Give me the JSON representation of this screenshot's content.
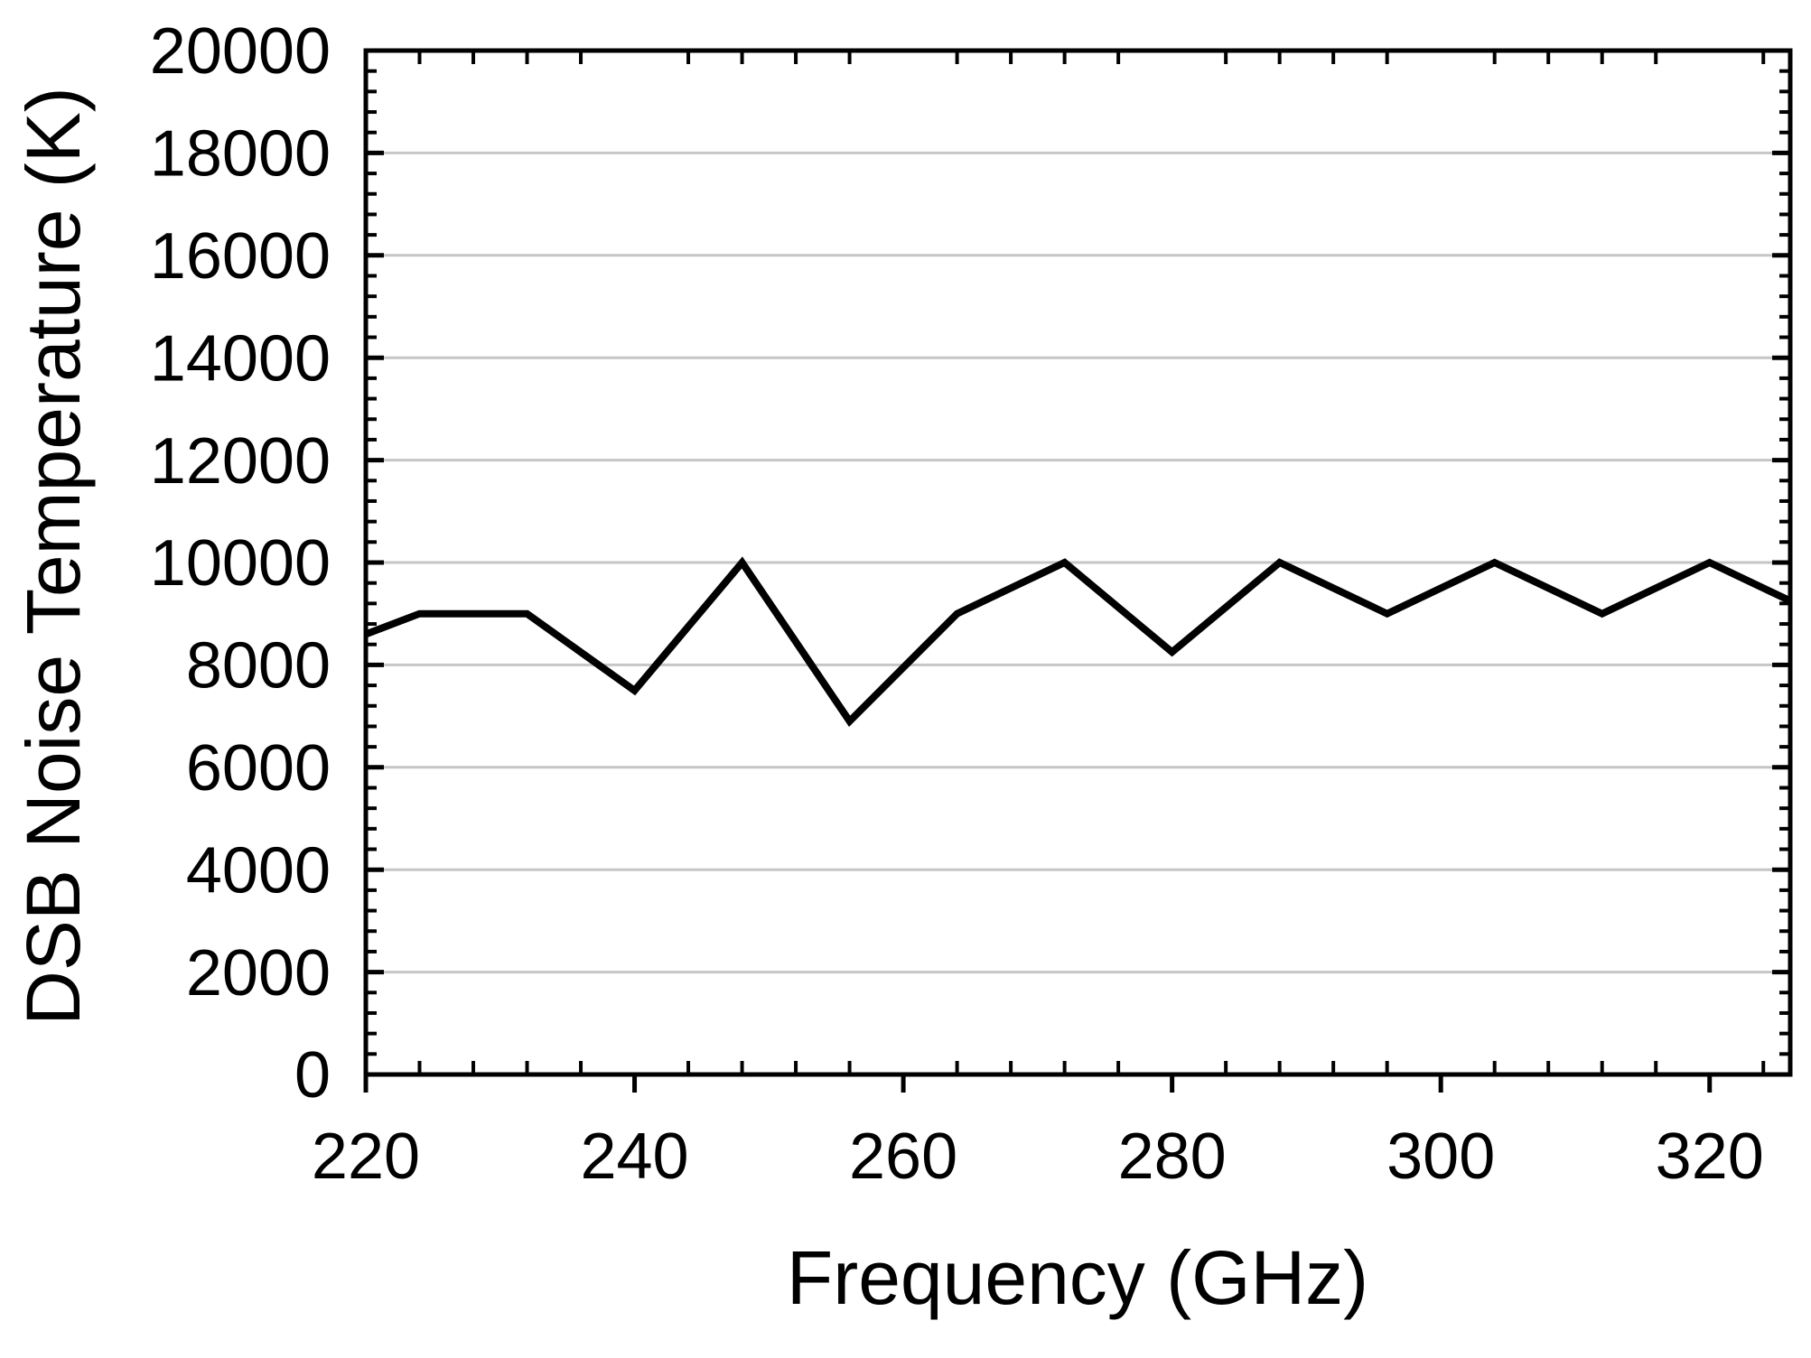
{
  "chart_data": {
    "type": "line",
    "title": "",
    "xlabel": "Frequency (GHz)",
    "ylabel": "DSB Noise Temperature (K)",
    "xlim": [
      220,
      326
    ],
    "ylim": [
      0,
      20000
    ],
    "x_major_ticks": [
      220,
      240,
      260,
      280,
      300,
      320
    ],
    "x_major_tick_labels": [
      "220",
      "240",
      "260",
      "280",
      "300",
      "320"
    ],
    "x_minor_tick_step": 4,
    "y_major_tick_step": 2000,
    "y_minor_tick_step": 400,
    "y_major_ticks": [
      0,
      2000,
      4000,
      6000,
      8000,
      10000,
      12000,
      14000,
      16000,
      18000,
      20000
    ],
    "y_major_tick_labels": [
      "0",
      "2000",
      "4000",
      "6000",
      "8000",
      "10000",
      "12000",
      "14000",
      "16000",
      "18000",
      "20000"
    ],
    "grid": {
      "horizontal_major": true,
      "vertical": false
    },
    "legend": "none",
    "series": [
      {
        "name": "DSB noise temperature",
        "x": [
          220,
          224,
          232,
          240,
          248,
          256,
          264,
          272,
          280,
          288,
          296,
          304,
          312,
          320,
          326
        ],
        "y": [
          8600,
          9000,
          9000,
          7500,
          10000,
          6900,
          9000,
          10000,
          8250,
          10000,
          9000,
          10000,
          9000,
          10000,
          9250
        ]
      }
    ],
    "colors": {
      "line": "#000000",
      "grid": "#c6c6c6",
      "axis": "#000000",
      "text": "#000000",
      "background": "#ffffff"
    }
  }
}
